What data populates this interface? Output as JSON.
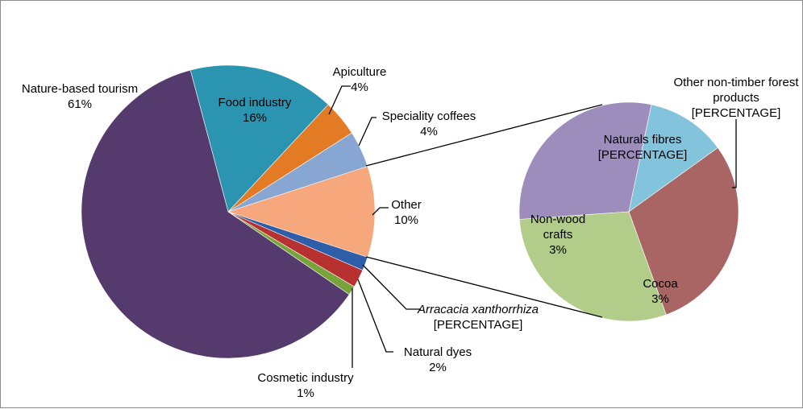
{
  "chart_data": {
    "type": "pie-of-pie",
    "main": {
      "slices": [
        {
          "label": "Nature-based tourism",
          "value_text": "61%",
          "value": 61,
          "color": "#543a6d"
        },
        {
          "label": "Food industry",
          "value_text": "16%",
          "value": 16,
          "color": "#2b95b1"
        },
        {
          "label": "Apiculture",
          "value_text": "4%",
          "value": 4,
          "color": "#e37a24"
        },
        {
          "label": "Speciality coffees",
          "value_text": "4%",
          "value": 4,
          "color": "#88a6d2"
        },
        {
          "label": "Other",
          "value_text": "10%",
          "value": 10,
          "color": "#f6a77b"
        },
        {
          "label": "Arracacia xanthorrhiza",
          "value_text": "[PERCENTAGE]",
          "value": 1.5,
          "color": "#2f5ea8"
        },
        {
          "label": "Natural dyes",
          "value_text": "2%",
          "value": 2,
          "color": "#b6312f"
        },
        {
          "label": "Cosmetic industry",
          "value_text": "1%",
          "value": 1,
          "color": "#76a33a"
        }
      ]
    },
    "secondary": {
      "of_slice": "Other",
      "slices": [
        {
          "label": "Naturals fibres",
          "value_text": "[PERCENTAGE]",
          "value": 3,
          "color": "#9d8dbc"
        },
        {
          "label": "Other non-timber forest products",
          "value_text": "[PERCENTAGE]",
          "value": 1.2,
          "color": "#84c3dc"
        },
        {
          "label": "Cocoa",
          "value_text": "3%",
          "value": 3,
          "color": "#a96564"
        },
        {
          "label": "Non-wood crafts",
          "value_text": "3%",
          "value": 3,
          "color": "#b1cd89"
        }
      ]
    }
  }
}
